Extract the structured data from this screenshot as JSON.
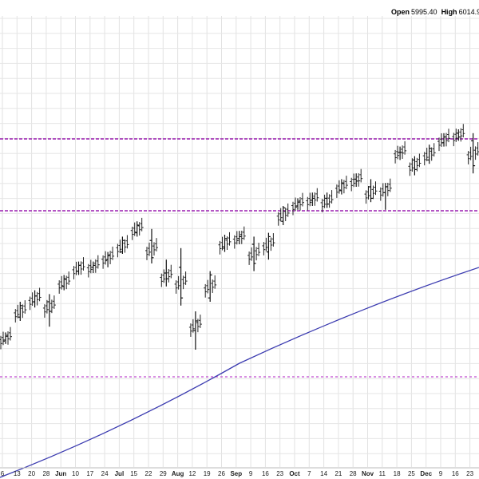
{
  "header": {
    "open_label": "Open",
    "open_value": "5995.40",
    "high_label": "High",
    "high_value": "6014.9"
  },
  "chart_data": {
    "type": "ohlc",
    "title": "",
    "xlabel": "",
    "ylabel": "",
    "grid": true,
    "x_ticks": [
      "6",
      "13",
      "20",
      "28",
      "Jun",
      "10",
      "17",
      "24",
      "Jul",
      "15",
      "22",
      "29",
      "Aug",
      "12",
      "19",
      "26",
      "Sep",
      "9",
      "16",
      "23",
      "Oct",
      "7",
      "14",
      "21",
      "28",
      "Nov",
      "11",
      "18",
      "25",
      "Dec",
      "9",
      "16",
      "23"
    ],
    "month_ticks": [
      "Jun",
      "Jul",
      "Aug",
      "Sep",
      "Oct",
      "Nov",
      "Dec"
    ],
    "horizontal_lines": [
      {
        "name": "upper",
        "style": "dashed",
        "color": "#9b1fb1"
      },
      {
        "name": "middle",
        "style": "dashed",
        "color": "#9b1fb1"
      },
      {
        "name": "lower",
        "style": "dashed",
        "color": "#c04cd0"
      }
    ],
    "moving_average": {
      "color": "#3b3bb0"
    },
    "series": [
      {
        "values": [
          {
            "x": "2024-05-06",
            "o": 10,
            "h": 14,
            "l": 8,
            "c": 12
          },
          {
            "x": "2024-05-13",
            "o": 22,
            "h": 30,
            "l": 20,
            "c": 28
          },
          {
            "x": "2024-05-20",
            "o": 30,
            "h": 36,
            "l": 27,
            "c": 33
          },
          {
            "x": "2024-05-28",
            "o": 30,
            "h": 34,
            "l": 17,
            "c": 25
          },
          {
            "x": "2024-06-03",
            "o": 38,
            "h": 44,
            "l": 36,
            "c": 42
          },
          {
            "x": "2024-06-10",
            "o": 46,
            "h": 51,
            "l": 44,
            "c": 49
          },
          {
            "x": "2024-06-17",
            "o": 48,
            "h": 51,
            "l": 45,
            "c": 49
          },
          {
            "x": "2024-06-24",
            "o": 52,
            "h": 56,
            "l": 48,
            "c": 54
          },
          {
            "x": "2024-07-01",
            "o": 56,
            "h": 64,
            "l": 55,
            "c": 62
          },
          {
            "x": "2024-07-08",
            "o": 66,
            "h": 72,
            "l": 64,
            "c": 70
          },
          {
            "x": "2024-07-15",
            "o": 62,
            "h": 68,
            "l": 50,
            "c": 53
          },
          {
            "x": "2024-07-22",
            "o": 45,
            "h": 52,
            "l": 38,
            "c": 42
          },
          {
            "x": "2024-07-29",
            "o": 48,
            "h": 58,
            "l": 28,
            "c": 32
          },
          {
            "x": "2024-08-05",
            "o": 15,
            "h": 25,
            "l": 5,
            "c": 20
          },
          {
            "x": "2024-08-12",
            "o": 32,
            "h": 46,
            "l": 30,
            "c": 44
          },
          {
            "x": "2024-08-19",
            "o": 58,
            "h": 65,
            "l": 56,
            "c": 63
          },
          {
            "x": "2024-08-26",
            "o": 63,
            "h": 67,
            "l": 60,
            "c": 64
          },
          {
            "x": "2024-09-03",
            "o": 60,
            "h": 64,
            "l": 46,
            "c": 50
          },
          {
            "x": "2024-09-09",
            "o": 56,
            "h": 66,
            "l": 52,
            "c": 64
          },
          {
            "x": "2024-09-16",
            "o": 72,
            "h": 80,
            "l": 70,
            "c": 79
          },
          {
            "x": "2024-09-23",
            "o": 80,
            "h": 84,
            "l": 78,
            "c": 82
          },
          {
            "x": "2024-09-30",
            "o": 83,
            "h": 87,
            "l": 80,
            "c": 84
          },
          {
            "x": "2024-10-07",
            "o": 84,
            "h": 87,
            "l": 79,
            "c": 81
          },
          {
            "x": "2024-10-14",
            "o": 88,
            "h": 94,
            "l": 86,
            "c": 92
          },
          {
            "x": "2024-10-21",
            "o": 94,
            "h": 97,
            "l": 90,
            "c": 93
          },
          {
            "x": "2024-10-28",
            "o": 90,
            "h": 94,
            "l": 82,
            "c": 84
          },
          {
            "x": "2024-11-04",
            "o": 87,
            "h": 92,
            "l": 78,
            "c": 90
          },
          {
            "x": "2024-11-11",
            "o": 108,
            "h": 111,
            "l": 104,
            "c": 108
          },
          {
            "x": "2024-11-18",
            "o": 104,
            "h": 106,
            "l": 96,
            "c": 99
          },
          {
            "x": "2024-11-25",
            "o": 104,
            "h": 112,
            "l": 102,
            "c": 110
          },
          {
            "x": "2024-12-02",
            "o": 113,
            "h": 118,
            "l": 111,
            "c": 116
          },
          {
            "x": "2024-12-09",
            "o": 118,
            "h": 120,
            "l": 114,
            "c": 116
          },
          {
            "x": "2024-12-16",
            "o": 114,
            "h": 118,
            "l": 97,
            "c": 101
          }
        ]
      }
    ]
  }
}
